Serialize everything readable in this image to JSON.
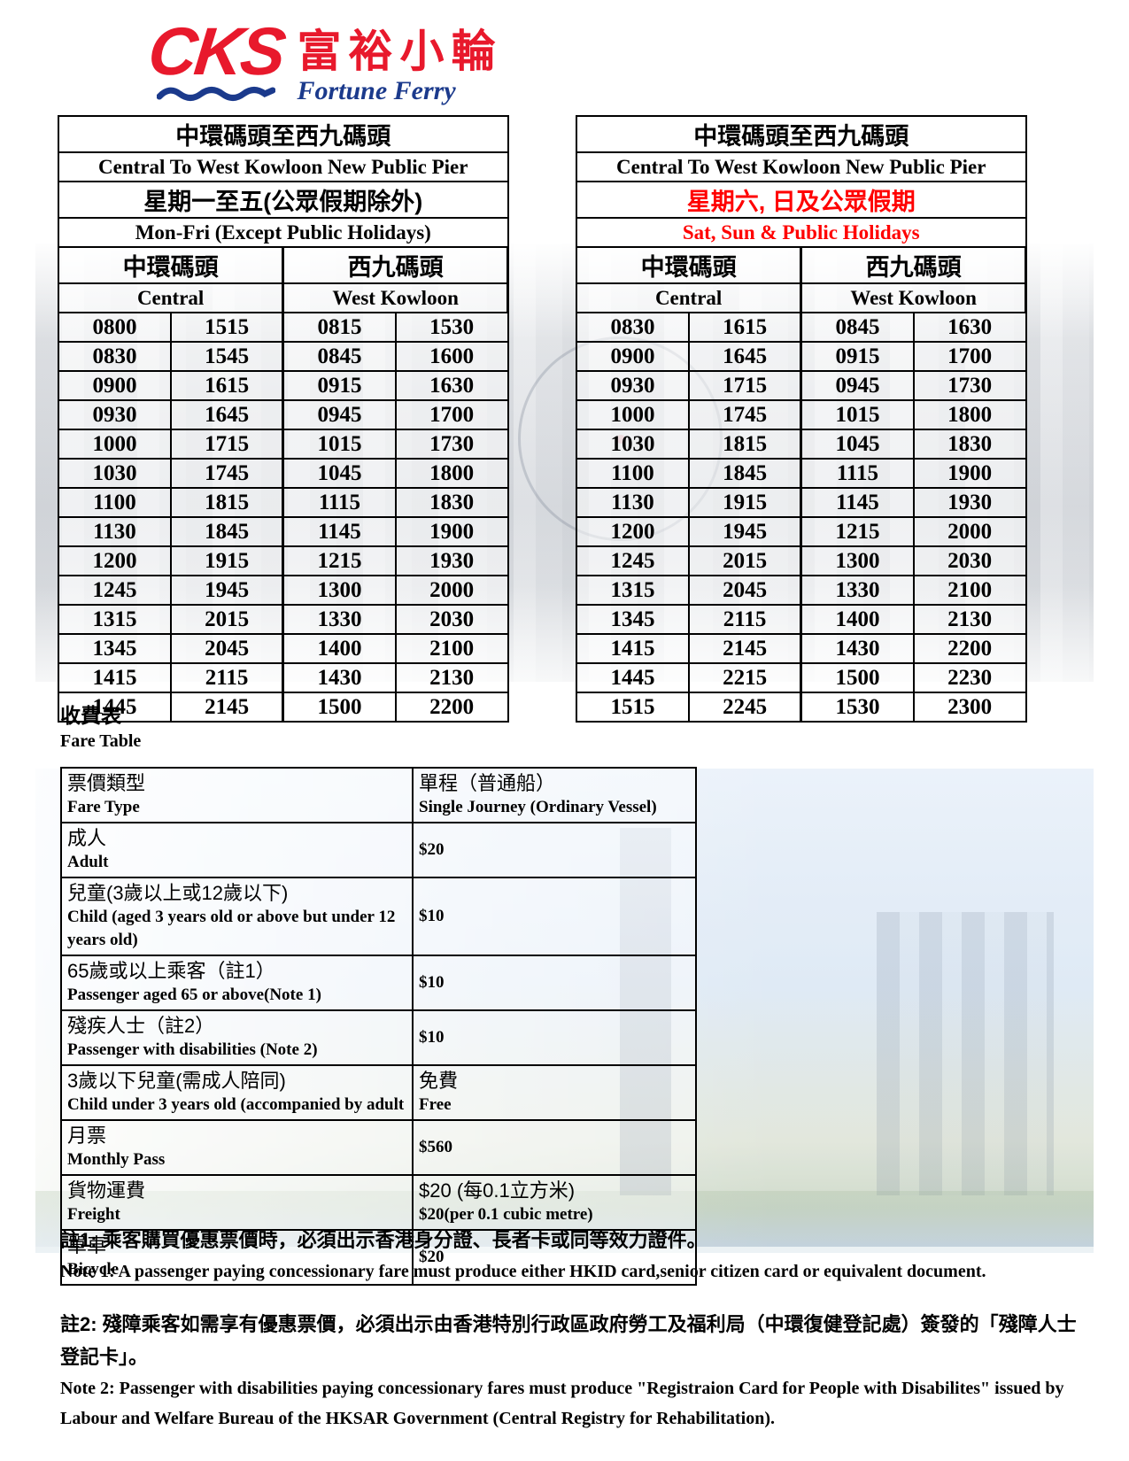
{
  "logo": {
    "cks": "CKS",
    "chinese": "富裕小輪",
    "english": "Fortune Ferry"
  },
  "colors": {
    "brand_red": "#e8192c",
    "brand_blue": "#1b3a8c",
    "holiday_red": "#ff0000",
    "weekday_black": "#000000"
  },
  "timetables": [
    {
      "route_zh": "中環碼頭至西九碼頭",
      "route_en": "Central To West Kowloon New Public Pier",
      "days_zh": "星期一至五(公眾假期除外)",
      "days_en": "Mon-Fri (Except Public Holidays)",
      "days_color": "#000000",
      "from_zh": "中環碼頭",
      "from_en": "Central",
      "to_zh": "西九碼頭",
      "to_en": "West Kowloon",
      "rows": [
        [
          "0800",
          "1515",
          "0815",
          "1530"
        ],
        [
          "0830",
          "1545",
          "0845",
          "1600"
        ],
        [
          "0900",
          "1615",
          "0915",
          "1630"
        ],
        [
          "0930",
          "1645",
          "0945",
          "1700"
        ],
        [
          "1000",
          "1715",
          "1015",
          "1730"
        ],
        [
          "1030",
          "1745",
          "1045",
          "1800"
        ],
        [
          "1100",
          "1815",
          "1115",
          "1830"
        ],
        [
          "1130",
          "1845",
          "1145",
          "1900"
        ],
        [
          "1200",
          "1915",
          "1215",
          "1930"
        ],
        [
          "1245",
          "1945",
          "1300",
          "2000"
        ],
        [
          "1315",
          "2015",
          "1330",
          "2030"
        ],
        [
          "1345",
          "2045",
          "1400",
          "2100"
        ],
        [
          "1415",
          "2115",
          "1430",
          "2130"
        ],
        [
          "1445",
          "2145",
          "1500",
          "2200"
        ]
      ]
    },
    {
      "route_zh": "中環碼頭至西九碼頭",
      "route_en": "Central To West Kowloon New Public Pier",
      "days_zh": "星期六, 日及公眾假期",
      "days_en": "Sat, Sun & Public Holidays",
      "days_color": "#ff0000",
      "from_zh": "中環碼頭",
      "from_en": "Central",
      "to_zh": "西九碼頭",
      "to_en": "West Kowloon",
      "rows": [
        [
          "0830",
          "1615",
          "0845",
          "1630"
        ],
        [
          "0900",
          "1645",
          "0915",
          "1700"
        ],
        [
          "0930",
          "1715",
          "0945",
          "1730"
        ],
        [
          "1000",
          "1745",
          "1015",
          "1800"
        ],
        [
          "1030",
          "1815",
          "1045",
          "1830"
        ],
        [
          "1100",
          "1845",
          "1115",
          "1900"
        ],
        [
          "1130",
          "1915",
          "1145",
          "1930"
        ],
        [
          "1200",
          "1945",
          "1215",
          "2000"
        ],
        [
          "1245",
          "2015",
          "1300",
          "2030"
        ],
        [
          "1315",
          "2045",
          "1330",
          "2100"
        ],
        [
          "1345",
          "2115",
          "1400",
          "2130"
        ],
        [
          "1415",
          "2145",
          "1430",
          "2200"
        ],
        [
          "1445",
          "2215",
          "1500",
          "2230"
        ],
        [
          "1515",
          "2245",
          "1530",
          "2300"
        ]
      ]
    }
  ],
  "fare_section": {
    "heading_zh": "收費表",
    "heading_en": "Fare Table"
  },
  "fare_table": {
    "header": {
      "type_zh": "票價類型",
      "type_en": "Fare Type",
      "fare_zh": "單程（普通船）",
      "fare_en": "Single Journey (Ordinary Vessel)"
    },
    "rows": [
      {
        "zh": "成人",
        "en": "Adult",
        "fare": [
          "$20"
        ]
      },
      {
        "zh": "兒童(3歲以上或12歲以下)",
        "en": "Child (aged 3 years old or above but under 12 years old)",
        "fare": [
          "$10"
        ]
      },
      {
        "zh": "65歲或以上乘客（註1）",
        "en": "Passenger aged 65 or above(Note 1)",
        "fare": [
          "$10"
        ]
      },
      {
        "zh": "殘疾人士（註2）",
        "en": "Passenger with disabilities (Note 2)",
        "fare": [
          "$10"
        ]
      },
      {
        "zh": "3歲以下兒童(需成人陪同)",
        "en": "Child under 3 years old (accompanied by adult",
        "fare": [
          "免費",
          "Free"
        ]
      },
      {
        "zh": "月票",
        "en": "Monthly Pass",
        "fare": [
          "$560"
        ]
      },
      {
        "zh": "貨物運費",
        "en": "Freight",
        "fare": [
          "$20 (每0.1立方米)",
          "$20(per 0.1 cubic metre)"
        ]
      },
      {
        "zh": "單車",
        "en": "Bicycle",
        "fare": [
          "$20"
        ]
      }
    ]
  },
  "notes": {
    "note1_zh": "註1:  乘客購買優惠票價時，必須出示香港身分證、長者卡或同等效力證件。",
    "note1_en": "Note 1: A passenger paying concessionary fare must produce either HKID card,senior citizen card or equivalent document.",
    "note2_zh": "註2:  殘障乘客如需享有優惠票價，必須出示由香港特別行政區政府勞工及福利局（中環復健登記處）簽發的「殘障人士登記卡」。",
    "note2_en": "Note 2: Passenger with disabilities paying concessionary fares must produce \"Registraion Card for People with Disabilites\" issued by Labour and Welfare Bureau of the HKSAR Government (Central Registry for Rehabilitation)."
  }
}
